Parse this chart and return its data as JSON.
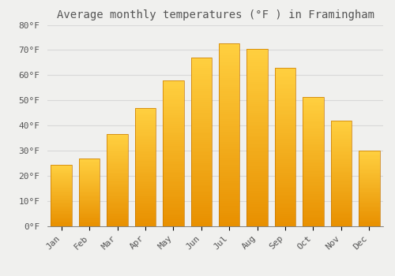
{
  "title": "Average monthly temperatures (°F ) in Framingham",
  "months": [
    "Jan",
    "Feb",
    "Mar",
    "Apr",
    "May",
    "Jun",
    "Jul",
    "Aug",
    "Sep",
    "Oct",
    "Nov",
    "Dec"
  ],
  "values": [
    24.5,
    27.0,
    36.5,
    47.0,
    58.0,
    67.0,
    72.5,
    70.5,
    63.0,
    51.5,
    42.0,
    30.0
  ],
  "bar_color_top": "#FFD040",
  "bar_color_bottom": "#E89000",
  "bar_edge_color": "#C87800",
  "background_color": "#F0F0EE",
  "grid_color": "#D8D8D8",
  "text_color": "#555555",
  "ylim": [
    0,
    80
  ],
  "yticks": [
    0,
    10,
    20,
    30,
    40,
    50,
    60,
    70,
    80
  ],
  "title_fontsize": 10,
  "tick_fontsize": 8
}
